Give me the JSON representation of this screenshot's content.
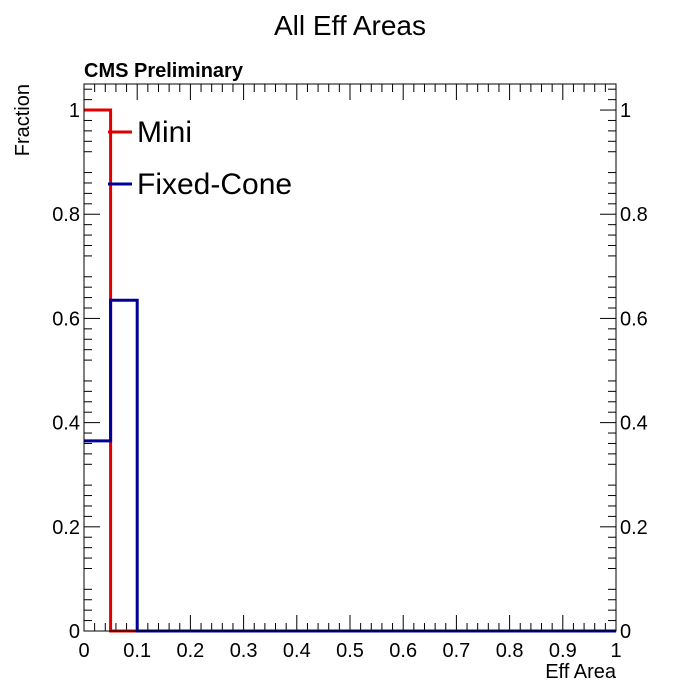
{
  "chart_data": {
    "type": "histogram",
    "title": "All Eff Areas",
    "label": "CMS Preliminary",
    "xlabel": "Eff Area",
    "ylabel": "Fraction",
    "xlim": [
      0,
      1
    ],
    "ylim": [
      0,
      1.05
    ],
    "xticks": [
      0,
      0.1,
      0.2,
      0.3,
      0.4,
      0.5,
      0.6,
      0.7,
      0.8,
      0.9,
      1
    ],
    "xtick_labels": [
      "0",
      "0.1",
      "0.2",
      "0.3",
      "0.4",
      "0.5",
      "0.6",
      "0.7",
      "0.8",
      "0.9",
      "1"
    ],
    "yticks": [
      0,
      0.2,
      0.4,
      0.6,
      0.8,
      1
    ],
    "ytick_labels": [
      "0",
      "0.2",
      "0.4",
      "0.6",
      "0.8",
      "1"
    ],
    "bin_edges": [
      0,
      0.05,
      0.1,
      0.15,
      0.2,
      0.25,
      0.3,
      0.35,
      0.4,
      0.45,
      0.5,
      0.55,
      0.6,
      0.65,
      0.7,
      0.75,
      0.8,
      0.85,
      0.9,
      0.95,
      1
    ],
    "series": [
      {
        "name": "Mini",
        "color": "#e00000",
        "values": [
          1.0,
          0,
          0,
          0,
          0,
          0,
          0,
          0,
          0,
          0,
          0,
          0,
          0,
          0,
          0,
          0,
          0,
          0,
          0,
          0
        ]
      },
      {
        "name": "Fixed-Cone",
        "color": "#000099",
        "values": [
          0.365,
          0.635,
          0,
          0,
          0,
          0,
          0,
          0,
          0,
          0,
          0,
          0,
          0,
          0,
          0,
          0,
          0,
          0,
          0,
          0
        ]
      }
    ],
    "legend": "top-left",
    "grid": false
  }
}
